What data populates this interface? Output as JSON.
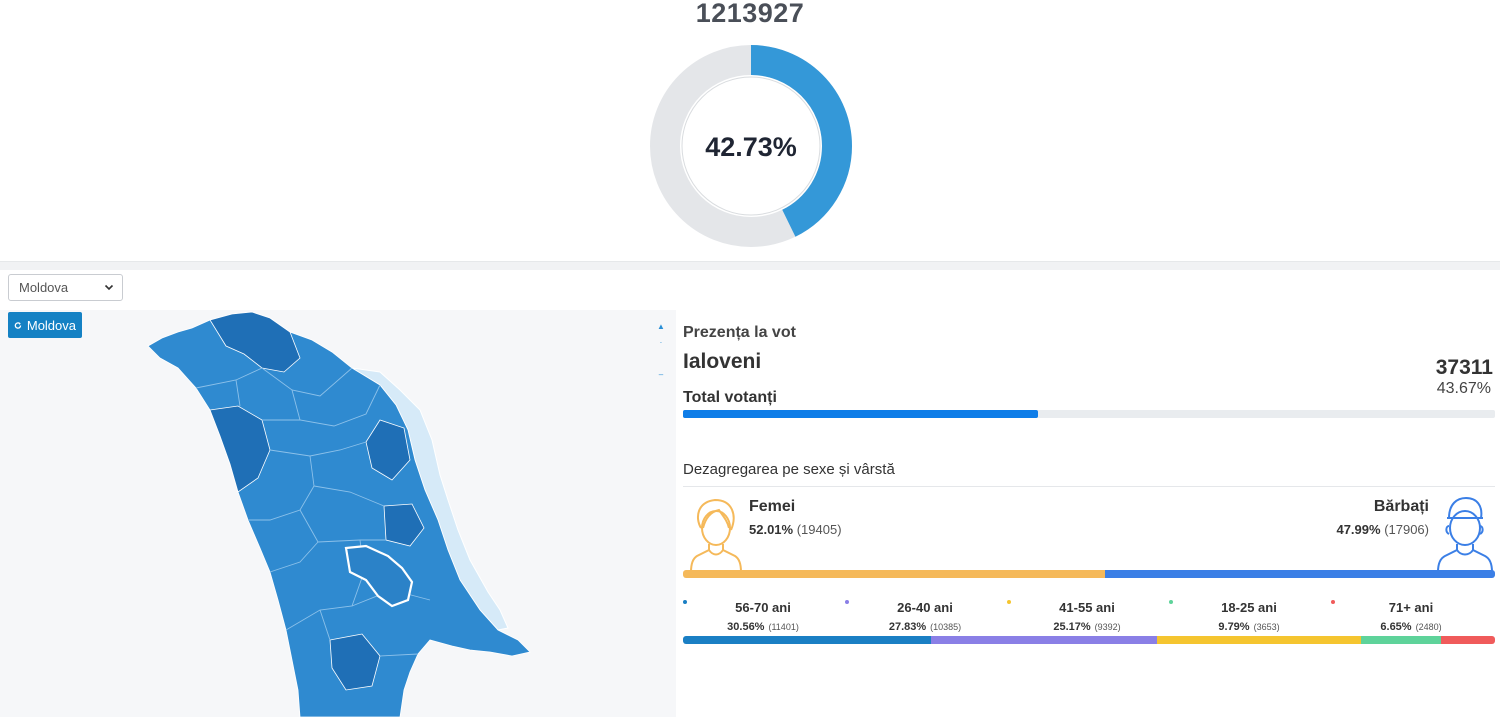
{
  "national": {
    "total_voters": "1213927",
    "turnout_percent": "42.73%",
    "turnout_fraction": 0.4273
  },
  "colors": {
    "donut_fill": "#3498d8",
    "donut_track": "#e4e6e9",
    "turnout_bar": "#0e7de8",
    "female": "#f5b95a",
    "male": "#3b7fe6",
    "map_region": "#2f8ad0",
    "map_region_dark": "#1f6fb6",
    "map_transnistria": "#d6eaf8"
  },
  "controls": {
    "region_select_value": "Moldova",
    "reset_button_label": "Moldova"
  },
  "panel": {
    "turnout_label": "Prezența la vot",
    "region_name": "Ialoveni",
    "total_voters_label": "Total votanți",
    "region_voters": "37311",
    "region_percent": "43.67%",
    "region_fraction": 0.4367,
    "breakdown_label": "Dezagregarea pe sexe și vârstă"
  },
  "gender": {
    "female": {
      "label": "Femei",
      "percent": "52.01%",
      "count": "(19405)",
      "fraction": 0.5201
    },
    "male": {
      "label": "Bărbați",
      "percent": "47.99%",
      "count": "(17906)",
      "fraction": 0.4799
    }
  },
  "age_groups": [
    {
      "label": "56-70 ani",
      "percent": "30.56%",
      "count": "(11401)",
      "fraction": 0.3056,
      "color": "#1a7fc4"
    },
    {
      "label": "26-40 ani",
      "percent": "27.83%",
      "count": "(10385)",
      "fraction": 0.2783,
      "color": "#8a7fe6"
    },
    {
      "label": "41-55 ani",
      "percent": "25.17%",
      "count": "(9392)",
      "fraction": 0.2517,
      "color": "#f5c52f"
    },
    {
      "label": "18-25 ani",
      "percent": "9.79%",
      "count": "(3653)",
      "fraction": 0.0979,
      "color": "#5ed39a"
    },
    {
      "label": "71+ ani",
      "percent": "6.65%",
      "count": "(2480)",
      "fraction": 0.0665,
      "color": "#f05b5b"
    }
  ]
}
